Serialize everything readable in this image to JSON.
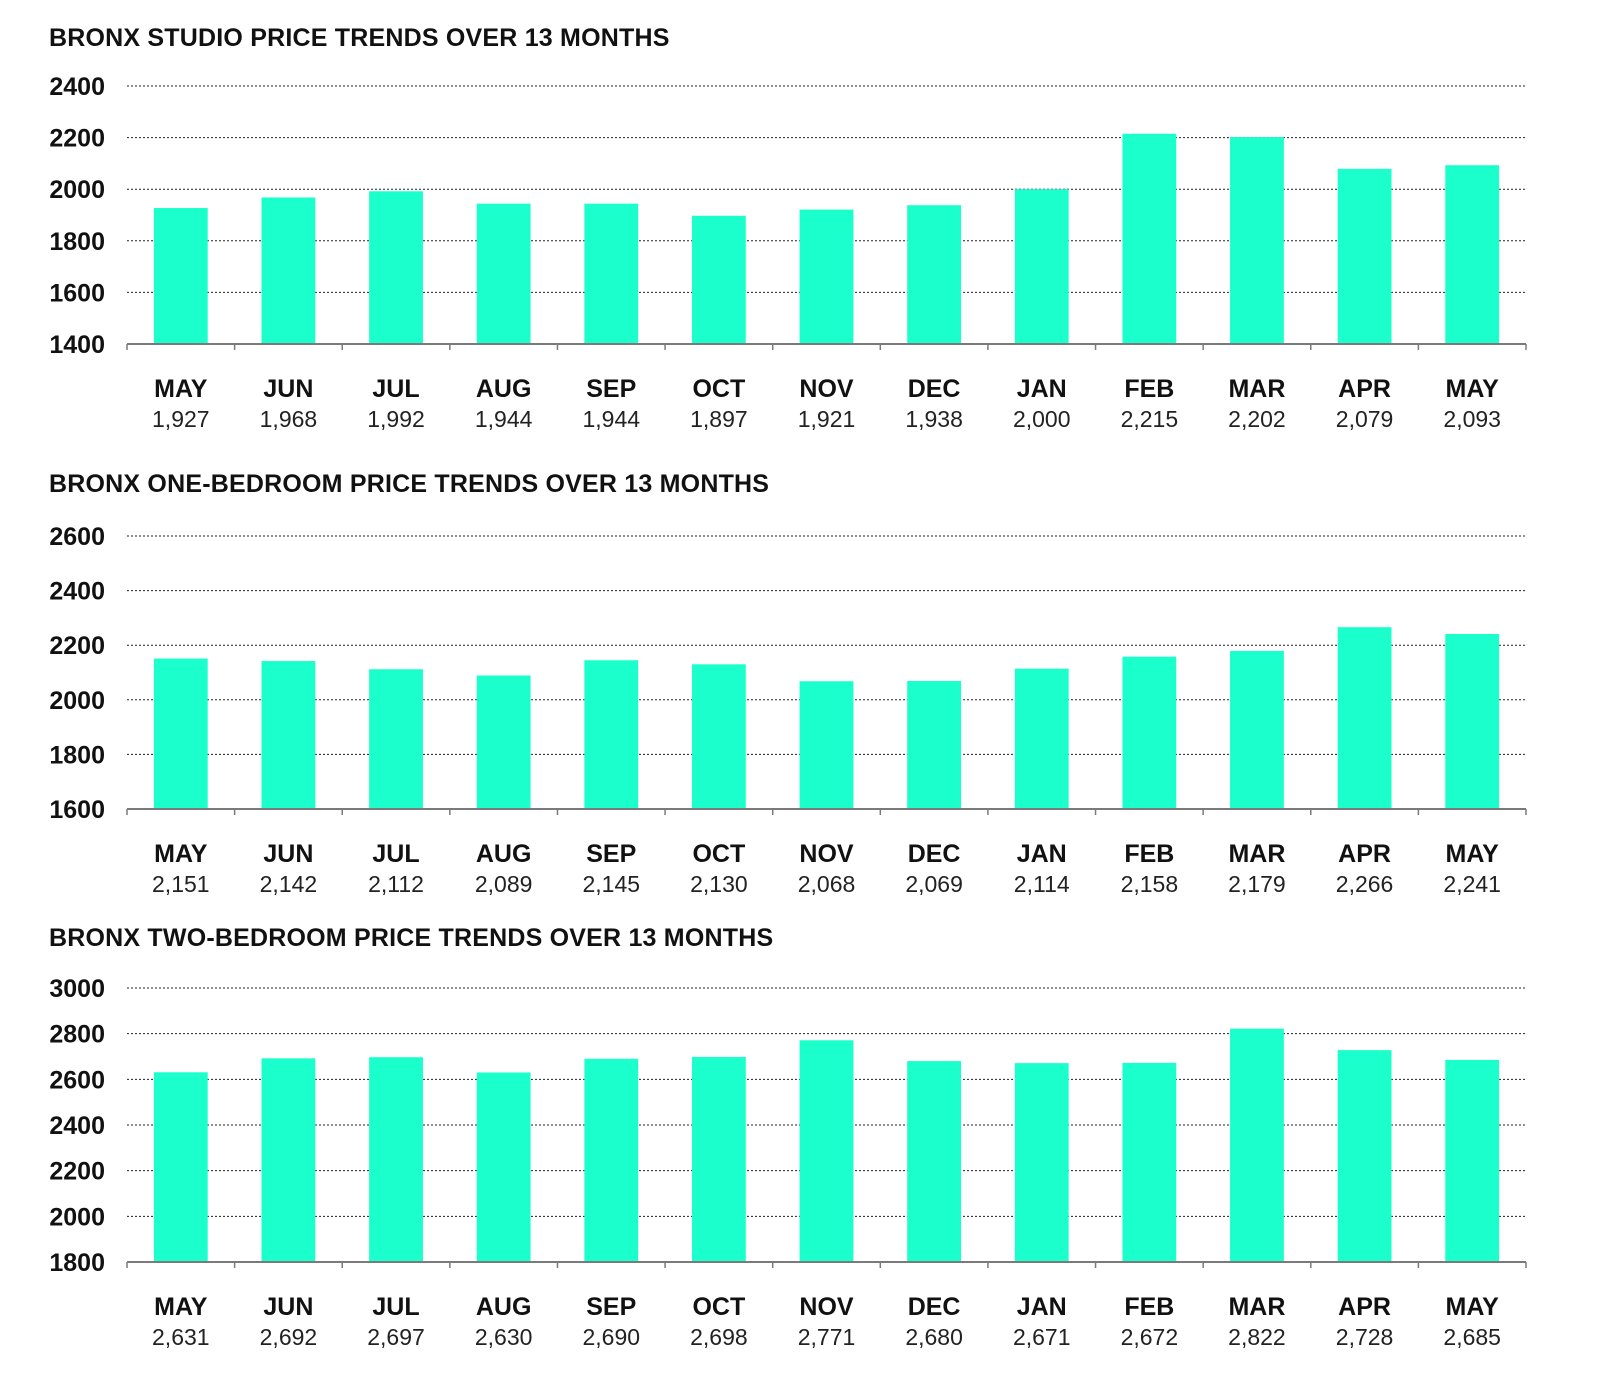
{
  "colors": {
    "bar": "#1bffcc",
    "axis": "#7a7a7a",
    "grid": "#222222"
  },
  "chart_data": [
    {
      "type": "bar",
      "title": "BRONX STUDIO PRICE TRENDS OVER 13 MONTHS",
      "xlabel": "",
      "ylabel": "",
      "ylim": [
        1400,
        2400
      ],
      "yticks": [
        1400,
        1600,
        1800,
        2000,
        2200,
        2400
      ],
      "grid": true,
      "categories": [
        "MAY",
        "JUN",
        "JUL",
        "AUG",
        "SEP",
        "OCT",
        "NOV",
        "DEC",
        "JAN",
        "FEB",
        "MAR",
        "APR",
        "MAY"
      ],
      "values": [
        1927,
        1968,
        1992,
        1944,
        1944,
        1897,
        1921,
        1938,
        2000,
        2215,
        2202,
        2079,
        2093
      ],
      "value_labels": [
        "1,927",
        "1,968",
        "1,992",
        "1,944",
        "1,944",
        "1,897",
        "1,921",
        "1,938",
        "2,000",
        "2,215",
        "2,202",
        "2,079",
        "2,093"
      ]
    },
    {
      "type": "bar",
      "title": "BRONX ONE-BEDROOM PRICE TRENDS OVER 13 MONTHS",
      "xlabel": "",
      "ylabel": "",
      "ylim": [
        1600,
        2600
      ],
      "yticks": [
        1600,
        1800,
        2000,
        2200,
        2400,
        2600
      ],
      "grid": true,
      "categories": [
        "MAY",
        "JUN",
        "JUL",
        "AUG",
        "SEP",
        "OCT",
        "NOV",
        "DEC",
        "JAN",
        "FEB",
        "MAR",
        "APR",
        "MAY"
      ],
      "values": [
        2151,
        2142,
        2112,
        2089,
        2145,
        2130,
        2068,
        2069,
        2114,
        2158,
        2179,
        2266,
        2241
      ],
      "value_labels": [
        "2,151",
        "2,142",
        "2,112",
        "2,089",
        "2,145",
        "2,130",
        "2,068",
        "2,069",
        "2,114",
        "2,158",
        "2,179",
        "2,266",
        "2,241"
      ]
    },
    {
      "type": "bar",
      "title": "BRONX TWO-BEDROOM PRICE TRENDS OVER 13 MONTHS",
      "xlabel": "",
      "ylabel": "",
      "ylim": [
        1800,
        3000
      ],
      "yticks": [
        1800,
        2000,
        2200,
        2400,
        2600,
        2800,
        3000
      ],
      "grid": true,
      "categories": [
        "MAY",
        "JUN",
        "JUL",
        "AUG",
        "SEP",
        "OCT",
        "NOV",
        "DEC",
        "JAN",
        "FEB",
        "MAR",
        "APR",
        "MAY"
      ],
      "values": [
        2631,
        2692,
        2697,
        2630,
        2690,
        2698,
        2771,
        2680,
        2671,
        2672,
        2822,
        2728,
        2685
      ],
      "value_labels": [
        "2,631",
        "2,692",
        "2,697",
        "2,630",
        "2,690",
        "2,698",
        "2,771",
        "2,680",
        "2,671",
        "2,672",
        "2,822",
        "2,728",
        "2,685"
      ]
    }
  ]
}
